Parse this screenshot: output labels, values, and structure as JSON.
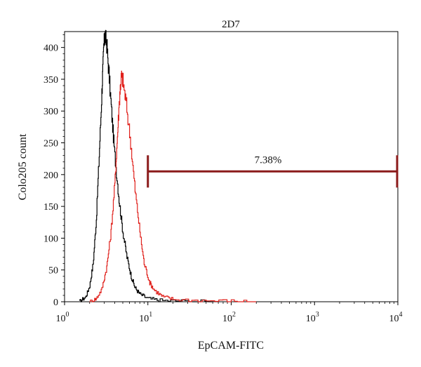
{
  "chart_data": {
    "type": "line",
    "title": "2D7",
    "xlabel": "EpCAM-FITC",
    "ylabel": "Colo205 count",
    "x_scale": "log",
    "xlim": [
      1,
      10000
    ],
    "ylim": [
      0,
      425
    ],
    "grid": false,
    "x_ticks": [
      {
        "value": 1,
        "base": "10",
        "exp": "0"
      },
      {
        "value": 10,
        "base": "10",
        "exp": "1"
      },
      {
        "value": 100,
        "base": "10",
        "exp": "2"
      },
      {
        "value": 1000,
        "base": "10",
        "exp": "3"
      },
      {
        "value": 10000,
        "base": "10",
        "exp": "4"
      }
    ],
    "y_ticks": [
      0,
      50,
      100,
      150,
      200,
      250,
      300,
      350,
      400
    ],
    "series": [
      {
        "color": "#000000",
        "points": [
          [
            1.5,
            0
          ],
          [
            1.8,
            8
          ],
          [
            2.0,
            25
          ],
          [
            2.2,
            60
          ],
          [
            2.4,
            130
          ],
          [
            2.6,
            230
          ],
          [
            2.8,
            330
          ],
          [
            2.95,
            400
          ],
          [
            3.05,
            420
          ],
          [
            3.2,
            405
          ],
          [
            3.4,
            360
          ],
          [
            3.7,
            290
          ],
          [
            4.0,
            230
          ],
          [
            4.5,
            160
          ],
          [
            5.0,
            110
          ],
          [
            5.6,
            70
          ],
          [
            6.3,
            40
          ],
          [
            7.0,
            22
          ],
          [
            8.0,
            12
          ],
          [
            10,
            5
          ],
          [
            14,
            2
          ],
          [
            25,
            1
          ],
          [
            60,
            0
          ]
        ]
      },
      {
        "color": "#e0201b",
        "points": [
          [
            2.0,
            0
          ],
          [
            2.4,
            5
          ],
          [
            2.8,
            20
          ],
          [
            3.2,
            55
          ],
          [
            3.6,
            110
          ],
          [
            4.0,
            185
          ],
          [
            4.3,
            260
          ],
          [
            4.6,
            330
          ],
          [
            4.8,
            355
          ],
          [
            5.0,
            348
          ],
          [
            5.5,
            310
          ],
          [
            6.2,
            250
          ],
          [
            7.0,
            175
          ],
          [
            8.0,
            110
          ],
          [
            9.0,
            60
          ],
          [
            10.5,
            30
          ],
          [
            12,
            18
          ],
          [
            15,
            8
          ],
          [
            20,
            4
          ],
          [
            40,
            2
          ],
          [
            100,
            1
          ],
          [
            200,
            0
          ]
        ]
      }
    ],
    "gate": {
      "label": "7.38%",
      "x_start": 10,
      "x_end": 10000,
      "y": 205,
      "color": "#8b1a1a"
    }
  }
}
